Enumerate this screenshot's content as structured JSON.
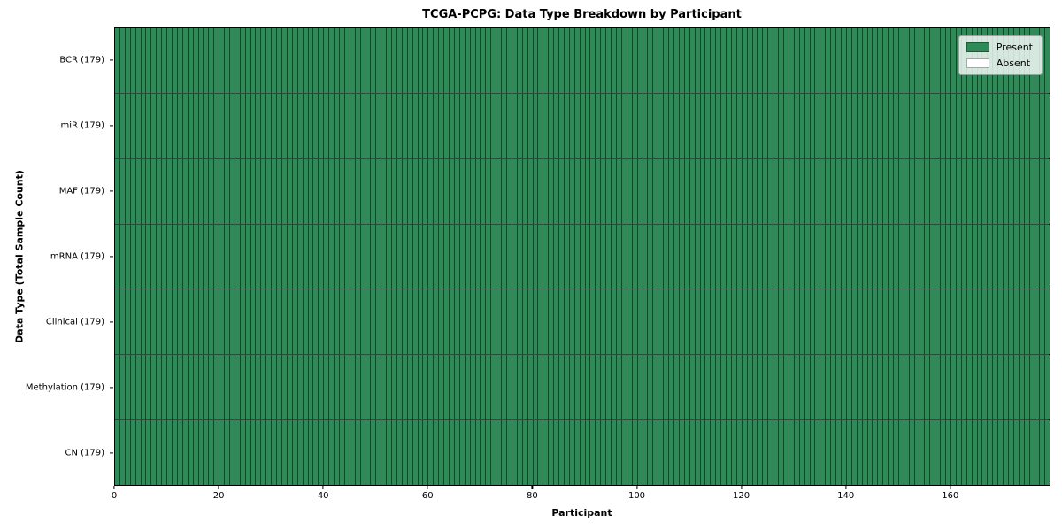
{
  "chart_data": {
    "type": "heatmap",
    "title": "TCGA-PCPG: Data Type Breakdown by Participant",
    "xlabel": "Participant",
    "ylabel": "Data Type (Total Sample Count)",
    "n_participants": 179,
    "xlim": [
      0,
      179
    ],
    "x_ticks": [
      0,
      20,
      40,
      60,
      80,
      100,
      120,
      140,
      160
    ],
    "rows": [
      {
        "name": "BCR",
        "label": "BCR (179)",
        "total": 179,
        "present_count": 179
      },
      {
        "name": "miR",
        "label": "miR (179)",
        "total": 179,
        "present_count": 179
      },
      {
        "name": "MAF",
        "label": "MAF (179)",
        "total": 179,
        "present_count": 179
      },
      {
        "name": "mRNA",
        "label": "mRNA (179)",
        "total": 179,
        "present_count": 179
      },
      {
        "name": "Clinical",
        "label": "Clinical (179)",
        "total": 179,
        "present_count": 179
      },
      {
        "name": "Methylation",
        "label": "Methylation (179)",
        "total": 179,
        "present_count": 179
      },
      {
        "name": "CN",
        "label": "CN (179)",
        "total": 179,
        "present_count": 179
      }
    ],
    "legend": {
      "position": "upper right",
      "items": [
        {
          "label": "Present",
          "color": "#2e8b57"
        },
        {
          "label": "Absent",
          "color": "#ffffff"
        }
      ]
    },
    "colors": {
      "present": "#2e8b57",
      "absent": "#ffffff"
    }
  }
}
